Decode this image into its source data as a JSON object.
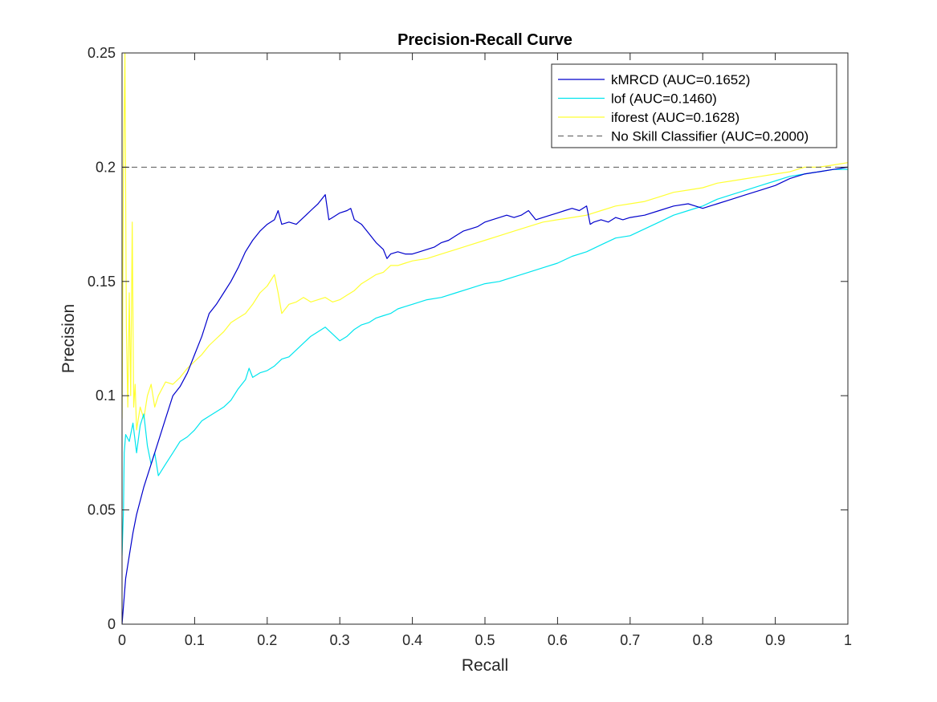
{
  "chart_data": {
    "type": "line",
    "title": "Precision-Recall Curve",
    "xlabel": "Recall",
    "ylabel": "Precision",
    "xlim": [
      0,
      1
    ],
    "ylim": [
      0,
      0.25
    ],
    "x_ticks": [
      0,
      0.1,
      0.2,
      0.3,
      0.4,
      0.5,
      0.6,
      0.7,
      0.8,
      0.9,
      1
    ],
    "x_tick_labels": [
      "0",
      "0.1",
      "0.2",
      "0.3",
      "0.4",
      "0.5",
      "0.6",
      "0.7",
      "0.8",
      "0.9",
      "1"
    ],
    "y_ticks": [
      0,
      0.05,
      0.1,
      0.15,
      0.2,
      0.25
    ],
    "y_tick_labels": [
      "0",
      "0.05",
      "0.1",
      "0.15",
      "0.2",
      "0.25"
    ],
    "grid": false,
    "legend_position": "top-right",
    "series": [
      {
        "name": "kMRCD (AUC=0.1652)",
        "color": "#0000cc",
        "dash": false,
        "points": [
          [
            0,
            0
          ],
          [
            0.005,
            0.02
          ],
          [
            0.01,
            0.03
          ],
          [
            0.015,
            0.04
          ],
          [
            0.02,
            0.048
          ],
          [
            0.03,
            0.06
          ],
          [
            0.04,
            0.07
          ],
          [
            0.05,
            0.08
          ],
          [
            0.06,
            0.09
          ],
          [
            0.07,
            0.1
          ],
          [
            0.08,
            0.104
          ],
          [
            0.09,
            0.11
          ],
          [
            0.1,
            0.118
          ],
          [
            0.11,
            0.126
          ],
          [
            0.12,
            0.136
          ],
          [
            0.13,
            0.14
          ],
          [
            0.14,
            0.145
          ],
          [
            0.15,
            0.15
          ],
          [
            0.16,
            0.156
          ],
          [
            0.17,
            0.163
          ],
          [
            0.18,
            0.168
          ],
          [
            0.19,
            0.172
          ],
          [
            0.2,
            0.175
          ],
          [
            0.21,
            0.177
          ],
          [
            0.215,
            0.181
          ],
          [
            0.22,
            0.175
          ],
          [
            0.23,
            0.176
          ],
          [
            0.24,
            0.175
          ],
          [
            0.25,
            0.178
          ],
          [
            0.26,
            0.181
          ],
          [
            0.27,
            0.184
          ],
          [
            0.28,
            0.188
          ],
          [
            0.285,
            0.177
          ],
          [
            0.29,
            0.178
          ],
          [
            0.3,
            0.18
          ],
          [
            0.31,
            0.181
          ],
          [
            0.315,
            0.182
          ],
          [
            0.32,
            0.177
          ],
          [
            0.33,
            0.175
          ],
          [
            0.34,
            0.171
          ],
          [
            0.35,
            0.167
          ],
          [
            0.36,
            0.164
          ],
          [
            0.365,
            0.16
          ],
          [
            0.37,
            0.162
          ],
          [
            0.38,
            0.163
          ],
          [
            0.39,
            0.162
          ],
          [
            0.4,
            0.162
          ],
          [
            0.41,
            0.163
          ],
          [
            0.42,
            0.164
          ],
          [
            0.43,
            0.165
          ],
          [
            0.44,
            0.167
          ],
          [
            0.45,
            0.168
          ],
          [
            0.46,
            0.17
          ],
          [
            0.47,
            0.172
          ],
          [
            0.48,
            0.173
          ],
          [
            0.49,
            0.174
          ],
          [
            0.5,
            0.176
          ],
          [
            0.51,
            0.177
          ],
          [
            0.52,
            0.178
          ],
          [
            0.53,
            0.179
          ],
          [
            0.54,
            0.178
          ],
          [
            0.55,
            0.179
          ],
          [
            0.56,
            0.181
          ],
          [
            0.57,
            0.177
          ],
          [
            0.58,
            0.178
          ],
          [
            0.59,
            0.179
          ],
          [
            0.6,
            0.18
          ],
          [
            0.61,
            0.181
          ],
          [
            0.62,
            0.182
          ],
          [
            0.63,
            0.181
          ],
          [
            0.64,
            0.183
          ],
          [
            0.645,
            0.175
          ],
          [
            0.65,
            0.176
          ],
          [
            0.66,
            0.177
          ],
          [
            0.67,
            0.176
          ],
          [
            0.68,
            0.178
          ],
          [
            0.69,
            0.177
          ],
          [
            0.7,
            0.178
          ],
          [
            0.72,
            0.179
          ],
          [
            0.74,
            0.181
          ],
          [
            0.76,
            0.183
          ],
          [
            0.78,
            0.184
          ],
          [
            0.8,
            0.182
          ],
          [
            0.82,
            0.184
          ],
          [
            0.84,
            0.186
          ],
          [
            0.86,
            0.188
          ],
          [
            0.88,
            0.19
          ],
          [
            0.9,
            0.192
          ],
          [
            0.92,
            0.195
          ],
          [
            0.94,
            0.197
          ],
          [
            0.96,
            0.198
          ],
          [
            0.98,
            0.199
          ],
          [
            1,
            0.2
          ]
        ]
      },
      {
        "name": "lof (AUC=0.1460)",
        "color": "#00e5ee",
        "dash": false,
        "points": [
          [
            0,
            0.03
          ],
          [
            0.002,
            0.05
          ],
          [
            0.003,
            0.075
          ],
          [
            0.005,
            0.083
          ],
          [
            0.01,
            0.08
          ],
          [
            0.015,
            0.088
          ],
          [
            0.02,
            0.075
          ],
          [
            0.025,
            0.087
          ],
          [
            0.03,
            0.092
          ],
          [
            0.035,
            0.078
          ],
          [
            0.04,
            0.07
          ],
          [
            0.045,
            0.075
          ],
          [
            0.05,
            0.065
          ],
          [
            0.06,
            0.07
          ],
          [
            0.07,
            0.075
          ],
          [
            0.08,
            0.08
          ],
          [
            0.09,
            0.082
          ],
          [
            0.1,
            0.085
          ],
          [
            0.11,
            0.089
          ],
          [
            0.12,
            0.091
          ],
          [
            0.13,
            0.093
          ],
          [
            0.14,
            0.095
          ],
          [
            0.15,
            0.098
          ],
          [
            0.16,
            0.103
          ],
          [
            0.17,
            0.107
          ],
          [
            0.175,
            0.112
          ],
          [
            0.18,
            0.108
          ],
          [
            0.19,
            0.11
          ],
          [
            0.2,
            0.111
          ],
          [
            0.21,
            0.113
          ],
          [
            0.22,
            0.116
          ],
          [
            0.23,
            0.117
          ],
          [
            0.24,
            0.12
          ],
          [
            0.25,
            0.123
          ],
          [
            0.26,
            0.126
          ],
          [
            0.27,
            0.128
          ],
          [
            0.28,
            0.13
          ],
          [
            0.29,
            0.127
          ],
          [
            0.3,
            0.124
          ],
          [
            0.31,
            0.126
          ],
          [
            0.32,
            0.129
          ],
          [
            0.33,
            0.131
          ],
          [
            0.34,
            0.132
          ],
          [
            0.35,
            0.134
          ],
          [
            0.36,
            0.135
          ],
          [
            0.37,
            0.136
          ],
          [
            0.38,
            0.138
          ],
          [
            0.39,
            0.139
          ],
          [
            0.4,
            0.14
          ],
          [
            0.42,
            0.142
          ],
          [
            0.44,
            0.143
          ],
          [
            0.46,
            0.145
          ],
          [
            0.48,
            0.147
          ],
          [
            0.5,
            0.149
          ],
          [
            0.52,
            0.15
          ],
          [
            0.54,
            0.152
          ],
          [
            0.56,
            0.154
          ],
          [
            0.58,
            0.156
          ],
          [
            0.6,
            0.158
          ],
          [
            0.62,
            0.161
          ],
          [
            0.64,
            0.163
          ],
          [
            0.66,
            0.166
          ],
          [
            0.68,
            0.169
          ],
          [
            0.7,
            0.17
          ],
          [
            0.72,
            0.173
          ],
          [
            0.74,
            0.176
          ],
          [
            0.76,
            0.179
          ],
          [
            0.78,
            0.181
          ],
          [
            0.8,
            0.183
          ],
          [
            0.82,
            0.186
          ],
          [
            0.84,
            0.188
          ],
          [
            0.86,
            0.19
          ],
          [
            0.88,
            0.192
          ],
          [
            0.9,
            0.194
          ],
          [
            0.92,
            0.196
          ],
          [
            0.94,
            0.197
          ],
          [
            0.96,
            0.198
          ],
          [
            0.98,
            0.199
          ],
          [
            1,
            0.199
          ]
        ]
      },
      {
        "name": "iforest (AUC=0.1628)",
        "color": "#ffff33",
        "dash": false,
        "points": [
          [
            0,
            0.09
          ],
          [
            0.002,
            0.2
          ],
          [
            0.004,
            0.25
          ],
          [
            0.006,
            0.13
          ],
          [
            0.008,
            0.095
          ],
          [
            0.01,
            0.145
          ],
          [
            0.012,
            0.1
          ],
          [
            0.014,
            0.176
          ],
          [
            0.016,
            0.095
          ],
          [
            0.018,
            0.105
          ],
          [
            0.02,
            0.085
          ],
          [
            0.025,
            0.095
          ],
          [
            0.03,
            0.09
          ],
          [
            0.035,
            0.1
          ],
          [
            0.04,
            0.105
          ],
          [
            0.045,
            0.095
          ],
          [
            0.05,
            0.1
          ],
          [
            0.06,
            0.106
          ],
          [
            0.07,
            0.105
          ],
          [
            0.08,
            0.108
          ],
          [
            0.09,
            0.112
          ],
          [
            0.1,
            0.115
          ],
          [
            0.11,
            0.118
          ],
          [
            0.12,
            0.122
          ],
          [
            0.13,
            0.125
          ],
          [
            0.14,
            0.128
          ],
          [
            0.15,
            0.132
          ],
          [
            0.16,
            0.134
          ],
          [
            0.17,
            0.136
          ],
          [
            0.18,
            0.14
          ],
          [
            0.19,
            0.145
          ],
          [
            0.2,
            0.148
          ],
          [
            0.21,
            0.153
          ],
          [
            0.215,
            0.145
          ],
          [
            0.22,
            0.136
          ],
          [
            0.225,
            0.138
          ],
          [
            0.23,
            0.14
          ],
          [
            0.24,
            0.141
          ],
          [
            0.25,
            0.143
          ],
          [
            0.26,
            0.141
          ],
          [
            0.27,
            0.142
          ],
          [
            0.28,
            0.143
          ],
          [
            0.29,
            0.141
          ],
          [
            0.3,
            0.142
          ],
          [
            0.31,
            0.144
          ],
          [
            0.32,
            0.146
          ],
          [
            0.33,
            0.149
          ],
          [
            0.34,
            0.151
          ],
          [
            0.35,
            0.153
          ],
          [
            0.36,
            0.154
          ],
          [
            0.37,
            0.157
          ],
          [
            0.38,
            0.157
          ],
          [
            0.39,
            0.158
          ],
          [
            0.4,
            0.159
          ],
          [
            0.42,
            0.16
          ],
          [
            0.44,
            0.162
          ],
          [
            0.46,
            0.164
          ],
          [
            0.48,
            0.166
          ],
          [
            0.5,
            0.168
          ],
          [
            0.52,
            0.17
          ],
          [
            0.54,
            0.172
          ],
          [
            0.56,
            0.174
          ],
          [
            0.58,
            0.176
          ],
          [
            0.6,
            0.177
          ],
          [
            0.62,
            0.178
          ],
          [
            0.64,
            0.179
          ],
          [
            0.66,
            0.181
          ],
          [
            0.68,
            0.183
          ],
          [
            0.7,
            0.184
          ],
          [
            0.72,
            0.185
          ],
          [
            0.74,
            0.187
          ],
          [
            0.76,
            0.189
          ],
          [
            0.78,
            0.19
          ],
          [
            0.8,
            0.191
          ],
          [
            0.82,
            0.193
          ],
          [
            0.84,
            0.194
          ],
          [
            0.86,
            0.195
          ],
          [
            0.88,
            0.196
          ],
          [
            0.9,
            0.197
          ],
          [
            0.92,
            0.198
          ],
          [
            0.94,
            0.2
          ],
          [
            0.96,
            0.2
          ],
          [
            0.98,
            0.201
          ],
          [
            1,
            0.202
          ]
        ]
      },
      {
        "name": "No Skill Classifier (AUC=0.2000)",
        "color": "#555555",
        "dash": true,
        "points": [
          [
            0,
            0.2
          ],
          [
            1,
            0.2
          ]
        ]
      }
    ]
  }
}
